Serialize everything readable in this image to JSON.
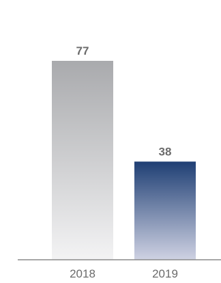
{
  "chart_data": {
    "type": "bar",
    "categories": [
      "2018",
      "2019"
    ],
    "values": [
      77,
      38
    ],
    "data_labels": [
      "77",
      "38"
    ],
    "title": "",
    "xlabel": "",
    "ylabel": "",
    "ylim": [
      0,
      77
    ],
    "grid": false,
    "legend": "none",
    "bar_colors": [
      {
        "top": "#a9aaad",
        "bottom": "#f3f3f4"
      },
      {
        "top": "#1f3f74",
        "bottom": "#cfd2e3"
      }
    ],
    "axis_color": "#8a8a8a",
    "label_color": "#6b6b6b"
  }
}
